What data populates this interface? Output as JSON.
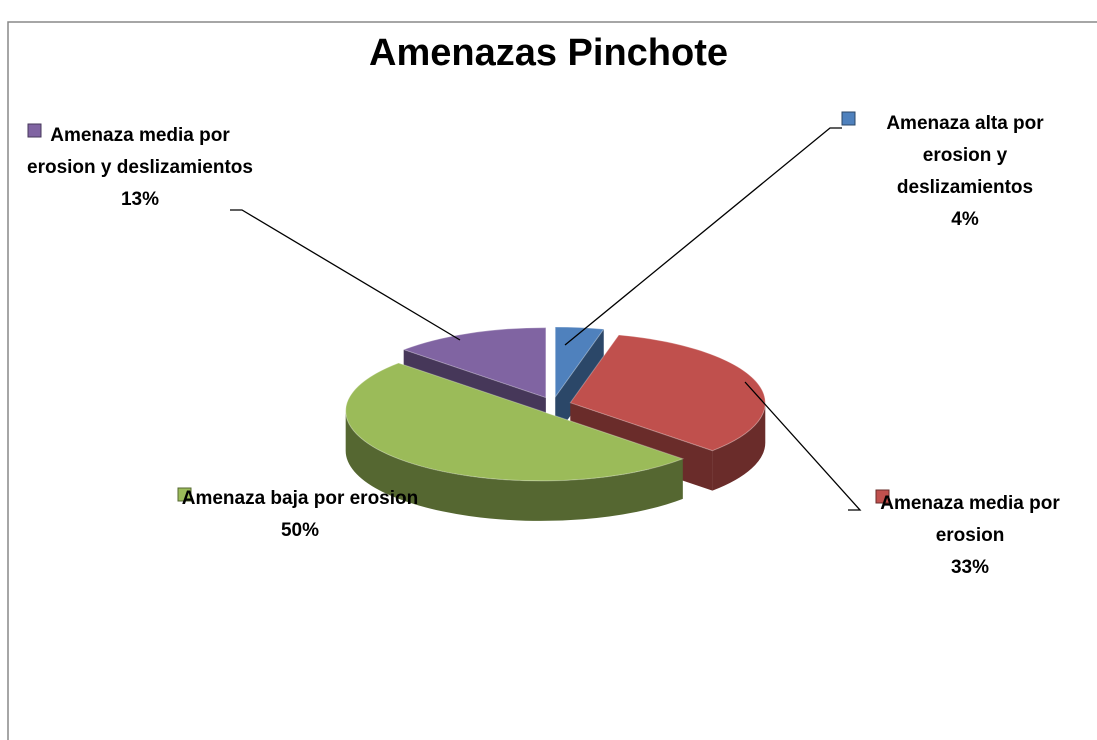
{
  "chart_data": {
    "type": "pie",
    "title": "Amenazas Pinchote",
    "categories": [
      "Amenaza alta por erosion y deslizamientos",
      "Amenaza media por erosion",
      "Amenaza baja por erosion",
      "Amenaza media por erosion y deslizamientos"
    ],
    "values": [
      4,
      33,
      50,
      13
    ],
    "value_labels": [
      "4%",
      "33%",
      "50%",
      "13%"
    ],
    "colors": [
      "#4f81bd",
      "#c0504d",
      "#9bbb59",
      "#8064a2"
    ]
  }
}
